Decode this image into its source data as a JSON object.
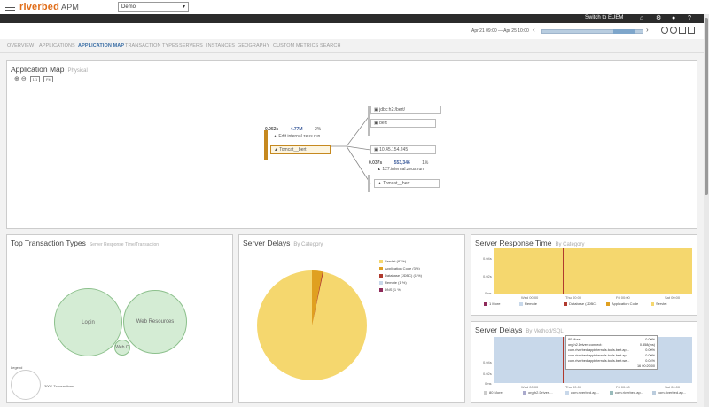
{
  "header": {
    "logo_brand": "riverbed",
    "logo_product": "APM",
    "env_select": "Demo",
    "switch_label": "Switch to EUEM",
    "date_range": "Apr 21 09:00 — Apr 25 10:00"
  },
  "tabs": [
    {
      "label": "OVERVIEW"
    },
    {
      "label": "APPLICATIONS"
    },
    {
      "label": "APPLICATION MAP"
    },
    {
      "label": "TRANSACTION TYPES"
    },
    {
      "label": "SERVERS"
    },
    {
      "label": "INSTANCES"
    },
    {
      "label": "GEOGRAPHY"
    },
    {
      "label": "CUSTOM METRICS"
    },
    {
      "label": "SEARCH"
    }
  ],
  "app_map": {
    "title": "Application Map",
    "subtitle": "Physical",
    "zoom_1to1": "1:1",
    "zoom_fit": "Fit",
    "left_node": {
      "resp": "0.052s",
      "calls": "4.77M",
      "pct": "2%",
      "host": "Edit internal.zeus.run",
      "app": "Tomcat__bert"
    },
    "right_nodes": [
      {
        "label": "jdbc:h2:/bert/"
      },
      {
        "label": "bert"
      },
      {
        "label": "10.45.154.245"
      },
      {
        "label": "Tomcat__bert"
      }
    ],
    "mid_node": {
      "resp": "0.037s",
      "calls": "553,346",
      "pct": "1%",
      "host": "127.internal.zeus.run"
    }
  },
  "top_transactions": {
    "title": "Top Transaction Types",
    "subtitle": "Server Response Time/Transaction",
    "bubbles": [
      {
        "label": "Login"
      },
      {
        "label": "Web Resources"
      },
      {
        "label": "Web O"
      }
    ],
    "legend_label": "Legend",
    "legend_value": "300K Transactions"
  },
  "server_delays": {
    "title": "Server Delays",
    "subtitle": "By Category",
    "legend": [
      {
        "label": "Servlet (87%)",
        "color": "#f5d76e"
      },
      {
        "label": "Application Code (3%)",
        "color": "#e0a020"
      },
      {
        "label": "Database (JDBC) (1 %)",
        "color": "#b03a2e"
      },
      {
        "label": "Remote (1 %)",
        "color": "#c8d8ea"
      },
      {
        "label": "DNS (1 %)",
        "color": "#8e2a5a"
      }
    ]
  },
  "server_response": {
    "title": "Server Response Time",
    "subtitle": "By Category",
    "y_ticks": [
      "0.04s",
      "0.02s",
      "0ms"
    ],
    "x_ticks": [
      "Wed 00:00",
      "Thu 00:00",
      "Fri 00:00",
      "Sat 00:00"
    ],
    "legend": [
      {
        "label": "1 More",
        "color": "#8e2a5a"
      },
      {
        "label": "Remote",
        "color": "#c8d8ea"
      },
      {
        "label": "Database (JDBC)",
        "color": "#b03a2e"
      },
      {
        "label": "Application Code",
        "color": "#e0a020"
      },
      {
        "label": "Servlet",
        "color": "#f5d76e"
      }
    ]
  },
  "server_delays_method": {
    "title": "Server Delays",
    "subtitle": "By Method/SQL",
    "y_ticks": [
      "0.04s",
      "0.02s",
      "0ms"
    ],
    "x_ticks": [
      "Wed 00:00",
      "Thu 00:00",
      "Fri 00:00",
      "Sat 00:00"
    ],
    "tooltip": [
      {
        "label": "80 More:",
        "value": "0.00%"
      },
      {
        "label": "org.h2.Driver::connect:",
        "value": "0.558(ms)"
      },
      {
        "label": "com.riverbed.appinternals.tools.bert.ap...",
        "value": "0.00%"
      },
      {
        "label": "com.riverbed.appinternals.tools.bert.ap...",
        "value": "0.00%"
      },
      {
        "label": "com.riverbed.appinternals.tools.bert.we...",
        "value": "0.04%"
      }
    ],
    "tooltip_time": "16 00:20:00",
    "legend": [
      {
        "label": "80 More"
      },
      {
        "label": "org.h2.Driver:..."
      },
      {
        "label": "com.riverbed.ap..."
      },
      {
        "label": "com.riverbed.ap..."
      },
      {
        "label": "com.riverbed.ap..."
      }
    ]
  }
}
